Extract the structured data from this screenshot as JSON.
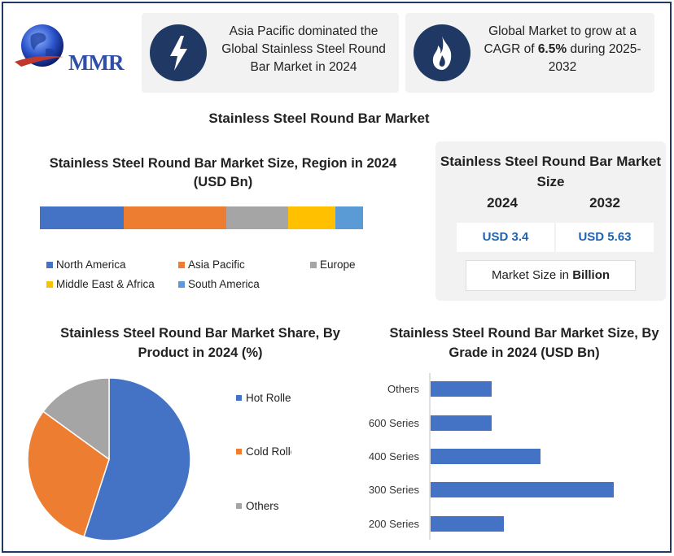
{
  "logo": {
    "text": "MMR"
  },
  "cards": [
    {
      "icon": "lightning-icon",
      "text": "Asia Pacific dominated the Global Stainless Steel Round Bar Market in 2024"
    },
    {
      "icon": "flame-icon",
      "text_pre": "Global Market to grow at a CAGR of ",
      "text_bold": "6.5%",
      "text_post": " during 2025-2032"
    }
  ],
  "main_title": "Stainless Steel Round Bar Market",
  "market_size": {
    "title": "Stainless Steel Round Bar Market Size",
    "year1": "2024",
    "year2": "2032",
    "value1": "USD 3.4",
    "value2": "USD 5.63",
    "unit_pre": "Market Size in ",
    "unit_bold": "Billion"
  },
  "colors": {
    "north_america": "#4472c4",
    "asia_pacific": "#ed7d31",
    "europe": "#a5a5a5",
    "middle_east_africa": "#ffc000",
    "south_america": "#5b9bd5",
    "navy": "#1f3864"
  },
  "chart_data": [
    {
      "type": "bar",
      "stacked": true,
      "title": "Stainless Steel Round Bar Market Size, Region in 2024 (USD Bn)",
      "series": [
        {
          "name": "North America",
          "value": 0.88,
          "color": "#4472c4"
        },
        {
          "name": "Asia Pacific",
          "value": 1.08,
          "color": "#ed7d31"
        },
        {
          "name": "Europe",
          "value": 0.65,
          "color": "#a5a5a5"
        },
        {
          "name": "Middle East & Africa",
          "value": 0.5,
          "color": "#ffc000"
        },
        {
          "name": "South America",
          "value": 0.29,
          "color": "#5b9bd5"
        }
      ]
    },
    {
      "type": "pie",
      "title": "Stainless Steel Round Bar Market Share, By Product in 2024 (%)",
      "categories": [
        "Hot Rolled",
        "Cold Rolled",
        "Others"
      ],
      "values": [
        55,
        30,
        15
      ],
      "colors": [
        "#4472c4",
        "#ed7d31",
        "#a5a5a5"
      ],
      "legend": "right"
    },
    {
      "type": "bar",
      "orientation": "horizontal",
      "title": "Stainless Steel Round Bar Market Size, By Grade in 2024 (USD Bn)",
      "categories": [
        "Others",
        "600 Series",
        "400 Series",
        "300 Series",
        "200 Series"
      ],
      "values": [
        0.45,
        0.45,
        0.81,
        1.35,
        0.54
      ],
      "color": "#4472c4"
    }
  ]
}
